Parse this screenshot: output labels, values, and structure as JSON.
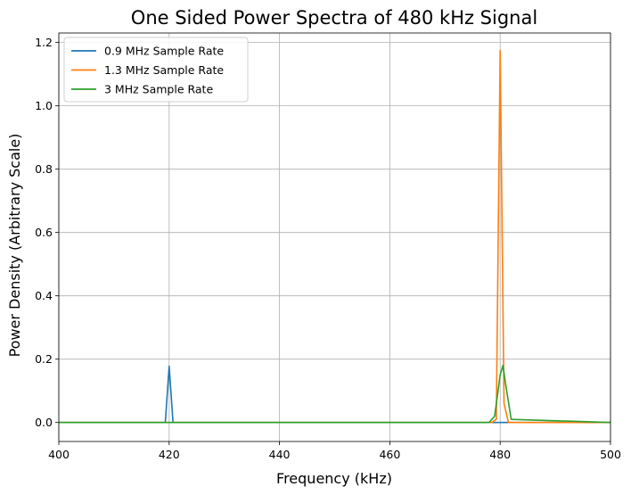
{
  "chart_data": {
    "type": "line",
    "title": "One Sided Power Spectra of 480 kHz Signal",
    "xlabel": "Frequency (kHz)",
    "ylabel": "Power Density (Arbitrary Scale)",
    "xlim": [
      400,
      500
    ],
    "ylim": [
      -0.06,
      1.23
    ],
    "xticks": [
      400,
      420,
      440,
      460,
      480,
      500
    ],
    "yticks": [
      0.0,
      0.2,
      0.4,
      0.6,
      0.8,
      1.0,
      1.2
    ],
    "xtick_labels": [
      "400",
      "420",
      "440",
      "460",
      "480",
      "500"
    ],
    "ytick_labels": [
      "0.0",
      "0.2",
      "0.4",
      "0.6",
      "0.8",
      "1.0",
      "1.2"
    ],
    "grid": true,
    "legend_position": "upper-left",
    "series": [
      {
        "name": "0.9 MHz Sample Rate",
        "color": "#1f77b4",
        "x": [
          400,
          419.3,
          420.0,
          420.7,
          500
        ],
        "y": [
          0.0,
          0.0,
          0.178,
          0.0,
          0.0
        ]
      },
      {
        "name": "1.3 MHz Sample Rate",
        "color": "#ff7f0e",
        "x": [
          400,
          478.5,
          479.3,
          480.0,
          480.7,
          481.5,
          500
        ],
        "y": [
          0.0,
          0.0,
          0.01,
          1.175,
          0.06,
          0.0,
          0.0
        ]
      },
      {
        "name": "3 MHz Sample Rate",
        "color": "#2ca02c",
        "x": [
          400,
          478.0,
          479.0,
          480.0,
          480.5,
          481.0,
          482.0,
          500
        ],
        "y": [
          0.0,
          0.0,
          0.02,
          0.15,
          0.18,
          0.12,
          0.01,
          0.0
        ]
      }
    ]
  }
}
